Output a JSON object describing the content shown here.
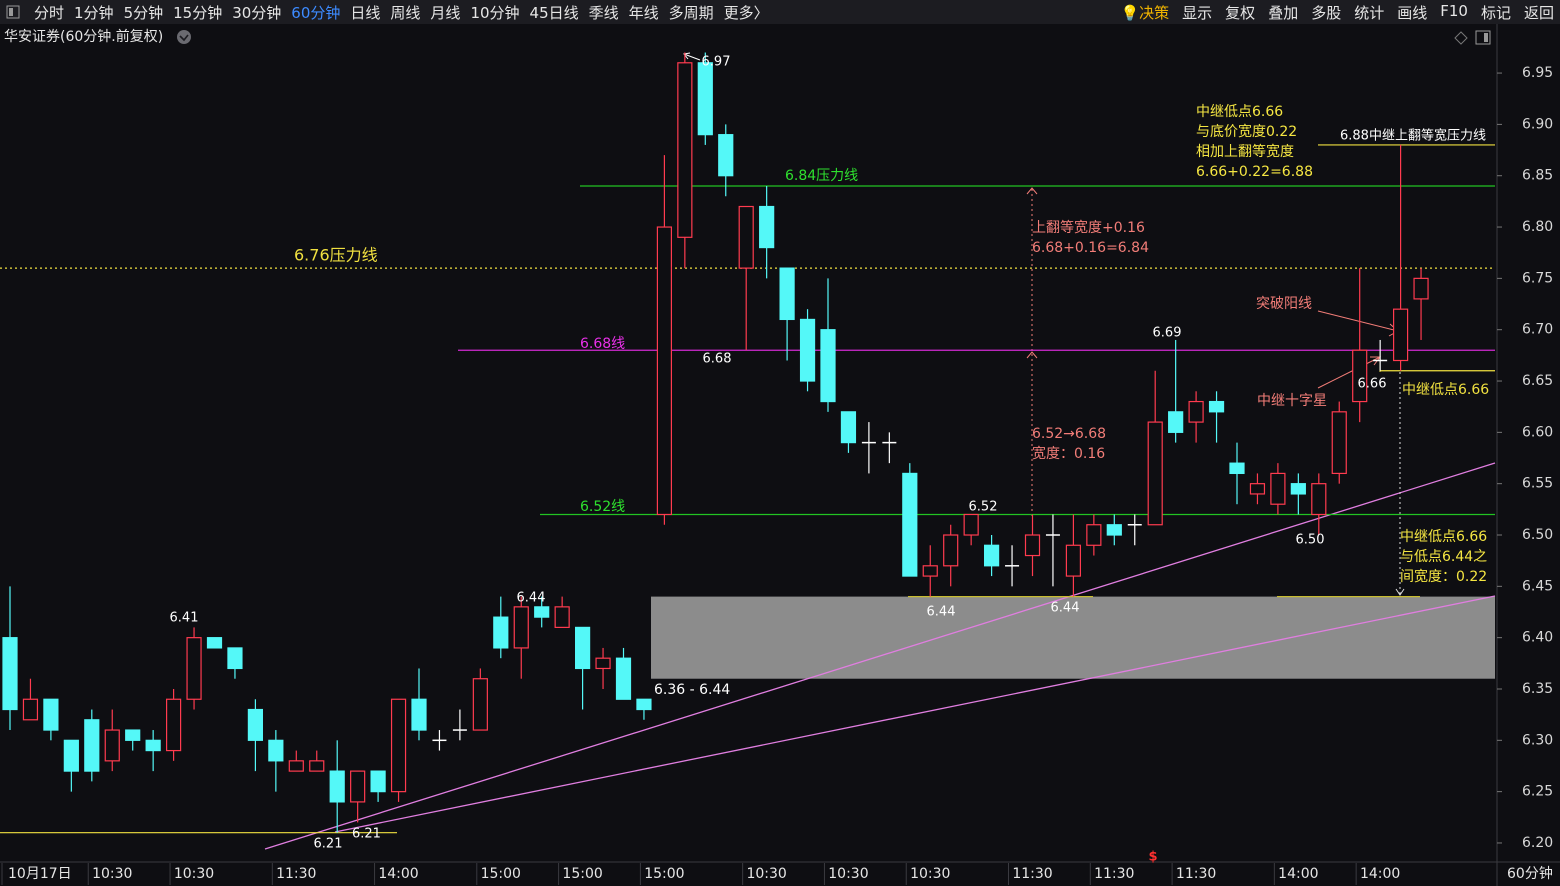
{
  "toolbar": {
    "tabs": [
      "分时",
      "1分钟",
      "5分钟",
      "15分钟",
      "30分钟",
      "60分钟",
      "日线",
      "周线",
      "月线",
      "10分钟",
      "45日线",
      "季线",
      "年线",
      "多周期",
      "更多〉"
    ],
    "active_tab": "60分钟",
    "actions": [
      "决策",
      "显示",
      "复权",
      "叠加",
      "多股",
      "统计",
      "画线",
      "F10",
      "标记",
      "返回"
    ]
  },
  "chart_data": {
    "type": "candlestick",
    "title": "华安证券(60分钟.前复权)",
    "period_label": "60分钟",
    "up_color": "#ff3b4f",
    "down_color": "#54f8f8",
    "doji_color": "#ffffff",
    "categories": [
      "10月17日",
      null,
      null,
      null,
      null,
      "10:30",
      null,
      null,
      null,
      "10:30",
      null,
      null,
      null,
      null,
      "11:30",
      null,
      null,
      null,
      null,
      "14:00",
      null,
      null,
      null,
      null,
      "15:00",
      null,
      null,
      null,
      "15:00",
      null,
      null,
      null,
      "15:00",
      null,
      null,
      null,
      null,
      "10:30",
      null,
      null,
      null,
      "10:30",
      null,
      null,
      null,
      "10:30",
      null,
      null,
      null,
      null,
      "11:30",
      null,
      null,
      null,
      "11:30",
      null,
      null,
      null,
      "11:30",
      null,
      null,
      null,
      null,
      "14:00",
      null,
      null,
      null,
      "14:00",
      null,
      null
    ],
    "open": [
      6.4,
      6.32,
      6.34,
      6.3,
      6.32,
      6.28,
      6.31,
      6.3,
      6.29,
      6.34,
      6.4,
      6.39,
      6.33,
      6.3,
      6.27,
      6.27,
      6.27,
      6.24,
      6.27,
      6.25,
      6.34,
      6.3,
      6.31,
      6.31,
      6.42,
      6.39,
      6.43,
      6.41,
      6.41,
      6.37,
      6.38,
      6.34,
      6.52,
      6.79,
      6.96,
      6.89,
      6.76,
      6.82,
      6.76,
      6.71,
      6.7,
      6.62,
      6.59,
      6.59,
      6.56,
      6.46,
      6.47,
      6.5,
      6.49,
      6.47,
      6.48,
      6.5,
      6.46,
      6.49,
      6.51,
      6.51,
      6.51,
      6.62,
      6.61,
      6.63,
      6.57,
      6.54,
      6.53,
      6.55,
      6.52,
      6.56,
      6.63,
      6.67,
      6.67,
      6.73
    ],
    "high": [
      6.45,
      6.36,
      6.34,
      6.3,
      6.33,
      6.33,
      6.31,
      6.31,
      6.35,
      6.41,
      6.4,
      6.39,
      6.34,
      6.31,
      6.29,
      6.29,
      6.3,
      6.27,
      6.27,
      6.34,
      6.37,
      6.31,
      6.33,
      6.37,
      6.44,
      6.44,
      6.44,
      6.44,
      6.41,
      6.39,
      6.39,
      6.34,
      6.87,
      6.97,
      6.97,
      6.9,
      6.82,
      6.84,
      6.76,
      6.72,
      6.75,
      6.62,
      6.61,
      6.6,
      6.57,
      6.49,
      6.51,
      6.52,
      6.5,
      6.49,
      6.52,
      6.52,
      6.52,
      6.52,
      6.52,
      6.52,
      6.66,
      6.69,
      6.64,
      6.64,
      6.59,
      6.56,
      6.57,
      6.56,
      6.56,
      6.63,
      6.76,
      6.69,
      6.88,
      6.76
    ],
    "low": [
      6.31,
      6.32,
      6.3,
      6.25,
      6.26,
      6.27,
      6.29,
      6.27,
      6.28,
      6.33,
      6.39,
      6.36,
      6.27,
      6.25,
      6.27,
      6.27,
      6.21,
      6.22,
      6.24,
      6.24,
      6.3,
      6.29,
      6.3,
      6.31,
      6.38,
      6.36,
      6.41,
      6.41,
      6.33,
      6.35,
      6.34,
      6.32,
      6.51,
      6.76,
      6.88,
      6.83,
      6.68,
      6.75,
      6.67,
      6.64,
      6.62,
      6.58,
      6.56,
      6.57,
      6.46,
      6.44,
      6.45,
      6.49,
      6.46,
      6.45,
      6.46,
      6.45,
      6.44,
      6.48,
      6.49,
      6.49,
      6.51,
      6.59,
      6.59,
      6.59,
      6.53,
      6.53,
      6.52,
      6.52,
      6.5,
      6.55,
      6.61,
      6.66,
      6.66,
      6.69
    ],
    "close": [
      6.33,
      6.34,
      6.31,
      6.27,
      6.27,
      6.31,
      6.3,
      6.29,
      6.34,
      6.4,
      6.39,
      6.37,
      6.3,
      6.28,
      6.28,
      6.28,
      6.24,
      6.27,
      6.25,
      6.34,
      6.31,
      6.3,
      6.31,
      6.36,
      6.39,
      6.43,
      6.42,
      6.43,
      6.37,
      6.38,
      6.34,
      6.33,
      6.8,
      6.96,
      6.89,
      6.85,
      6.82,
      6.78,
      6.71,
      6.65,
      6.63,
      6.59,
      6.59,
      6.59,
      6.46,
      6.47,
      6.5,
      6.52,
      6.47,
      6.47,
      6.5,
      6.5,
      6.49,
      6.51,
      6.5,
      6.51,
      6.61,
      6.6,
      6.63,
      6.62,
      6.56,
      6.55,
      6.56,
      6.54,
      6.55,
      6.62,
      6.68,
      6.67,
      6.72,
      6.75
    ],
    "ylim": [
      6.18,
      6.99
    ],
    "yticks": [
      {
        "value": 6.2,
        "label": "6.20"
      },
      6.25,
      {
        "value": 6.3,
        "label": "6.30"
      },
      6.35,
      {
        "value": 6.4,
        "label": "6.40"
      },
      6.45,
      {
        "value": 6.5,
        "label": "6.50"
      },
      6.55,
      {
        "value": 6.6,
        "label": "6.60"
      },
      6.65,
      {
        "value": 6.7,
        "label": "6.70"
      },
      6.75,
      {
        "value": 6.8,
        "label": "6.80"
      },
      6.85,
      {
        "value": 6.9,
        "label": "6.90"
      },
      6.95
    ],
    "point_labels": [
      6.97,
      6.68,
      6.41,
      6.44,
      6.52,
      6.44,
      6.44,
      6.69,
      {
        "value": 6.5,
        "label": "6.50"
      },
      6.66,
      6.21
    ],
    "hlines": [
      {
        "value": 6.76,
        "label": "6.76压力线",
        "color": "#f0e040",
        "label_color": "#f0e040",
        "style": "dotted"
      },
      {
        "value": 6.84,
        "label": "6.84压力线",
        "color": "#22c322",
        "label_color": "#2ee02e",
        "style": "solid"
      },
      {
        "value": 6.68,
        "label": "6.68线",
        "color": "#d22ad2",
        "label_color": "#e830e8",
        "style": "solid"
      },
      {
        "value": 6.52,
        "label": "6.52线",
        "color": "#22c322",
        "label_color": "#2ee02e",
        "style": "solid"
      },
      {
        "value": 6.88,
        "label": "6.88中继上翻等宽压力线",
        "color": "#f0e040",
        "label_color": "#ffffff",
        "style": "solid"
      },
      {
        "value": 6.66,
        "label": "中继低点6.66",
        "color": "#f0e040",
        "label_color": "#f0e040",
        "style": "solid"
      },
      {
        "value": 6.21,
        "label": "6.21",
        "color": "#f0e040",
        "label_color": "#ffffff",
        "style": "solid"
      },
      {
        "value": 6.44,
        "color": "#c8bc30",
        "style": "solid"
      },
      {
        "value": 6.44,
        "color": "#c8bc30",
        "style": "solid"
      }
    ],
    "zone": {
      "low": 6.36,
      "high": 6.44,
      "label": "6.36 - 6.44",
      "color": "#8c8c8c"
    },
    "notes": [
      {
        "lines": [
          "上翻等宽度+0.16",
          "6.68+0.16=6.84"
        ],
        "color": "#f27d78"
      },
      {
        "lines": [
          "6.52→6.68",
          "宽度：0.16"
        ],
        "color": "#f27d78"
      },
      {
        "lines": [
          "突破阳线"
        ],
        "color": "#f27d78"
      },
      {
        "lines": [
          "中继十字星"
        ],
        "color": "#f27d78"
      },
      {
        "lines": [
          "中继低点6.66",
          "与底价宽度0.22",
          "相加上翻等宽度",
          "6.66+0.22=6.88"
        ],
        "color": "#f5e642"
      },
      {
        "lines": [
          "中继低点6.66",
          "与低点6.44之",
          "间宽度：0.22"
        ],
        "color": "#f5e642"
      }
    ]
  }
}
